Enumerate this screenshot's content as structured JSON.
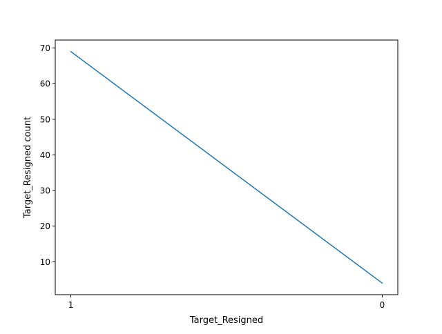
{
  "chart_data": {
    "type": "line",
    "title": "",
    "xlabel": "Target_Resigned",
    "ylabel": "Target_Resigned count",
    "categories": [
      "1",
      "0"
    ],
    "series": [
      {
        "values": [
          69,
          4
        ],
        "color": "#1f77b4"
      }
    ],
    "ylim": [
      0.75,
      72.25
    ],
    "yticks": [
      10,
      20,
      30,
      40,
      50,
      60,
      70
    ],
    "grid": false,
    "legend": "none"
  }
}
